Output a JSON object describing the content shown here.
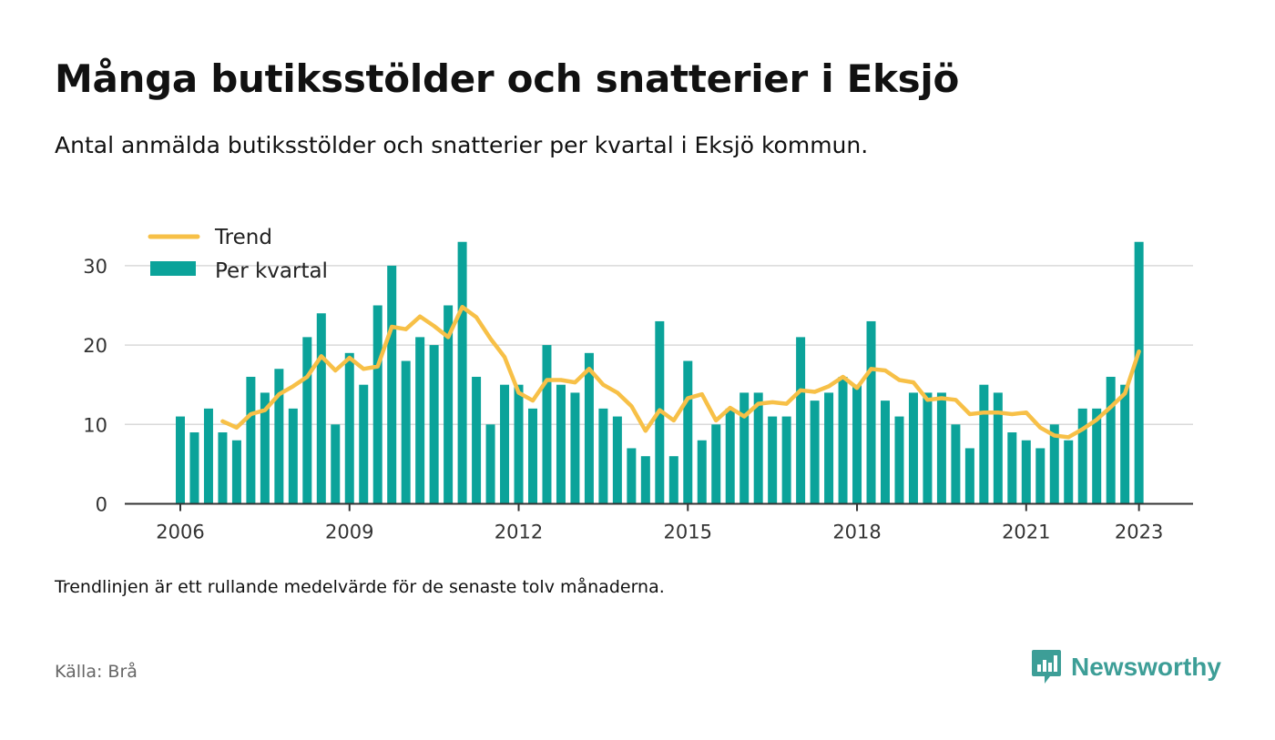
{
  "header": {
    "title": "Många butiksstölder och snatterier i Eksjö",
    "subtitle": "Antal anmälda butiksstölder och snatterier per kvartal i Eksjö kommun."
  },
  "footer": {
    "note": "Trendlinjen är ett rullande medelvärde för de senaste tolv månaderna.",
    "source": "Källa: Brå",
    "brand": "Newsworthy"
  },
  "colors": {
    "bar": "#0ba39a",
    "trend": "#f7c047",
    "grid": "#d9d9d9",
    "axis": "#333333",
    "brand": "#3d9e97"
  },
  "chart_data": {
    "type": "bar",
    "x_start": "2006 Q1",
    "xticks": [
      "2006",
      "2009",
      "2012",
      "2015",
      "2018",
      "2021",
      "2023"
    ],
    "yticks": [
      "0",
      "10",
      "20",
      "30"
    ],
    "ylim": [
      0,
      34
    ],
    "grid": true,
    "legend_position": "top-left",
    "series": [
      {
        "name": "Per kvartal",
        "type": "bar",
        "values": [
          11,
          9,
          12,
          9,
          8,
          16,
          14,
          17,
          12,
          21,
          24,
          10,
          19,
          15,
          25,
          30,
          18,
          21,
          20,
          25,
          33,
          16,
          10,
          15,
          15,
          12,
          20,
          15,
          14,
          19,
          12,
          11,
          7,
          6,
          23,
          6,
          18,
          8,
          10,
          12,
          14,
          14,
          11,
          11,
          21,
          13,
          14,
          16,
          15,
          23,
          13,
          11,
          14,
          14,
          14,
          10,
          7,
          15,
          14,
          9,
          8,
          7,
          10,
          8,
          12,
          12,
          16,
          15,
          33
        ]
      },
      {
        "name": "Trend",
        "type": "line",
        "values": [
          null,
          null,
          null,
          10.4,
          9.6,
          11.3,
          11.8,
          13.8,
          14.8,
          16.0,
          18.6,
          16.8,
          18.4,
          17.0,
          17.3,
          22.3,
          22.0,
          23.6,
          22.4,
          21.0,
          24.8,
          23.5,
          20.8,
          18.5,
          14.0,
          13.0,
          15.6,
          15.6,
          15.3,
          17.0,
          15.0,
          14.0,
          12.3,
          9.2,
          11.8,
          10.5,
          13.3,
          13.8,
          10.5,
          12.1,
          11.0,
          12.6,
          12.8,
          12.6,
          14.3,
          14.1,
          14.8,
          16.0,
          14.6,
          17.0,
          16.8,
          15.6,
          15.3,
          13.1,
          13.3,
          13.1,
          11.3,
          11.5,
          11.5,
          11.3,
          11.5,
          9.6,
          8.6,
          8.4,
          9.4,
          10.6,
          12.2,
          13.9,
          19.2
        ]
      }
    ]
  }
}
